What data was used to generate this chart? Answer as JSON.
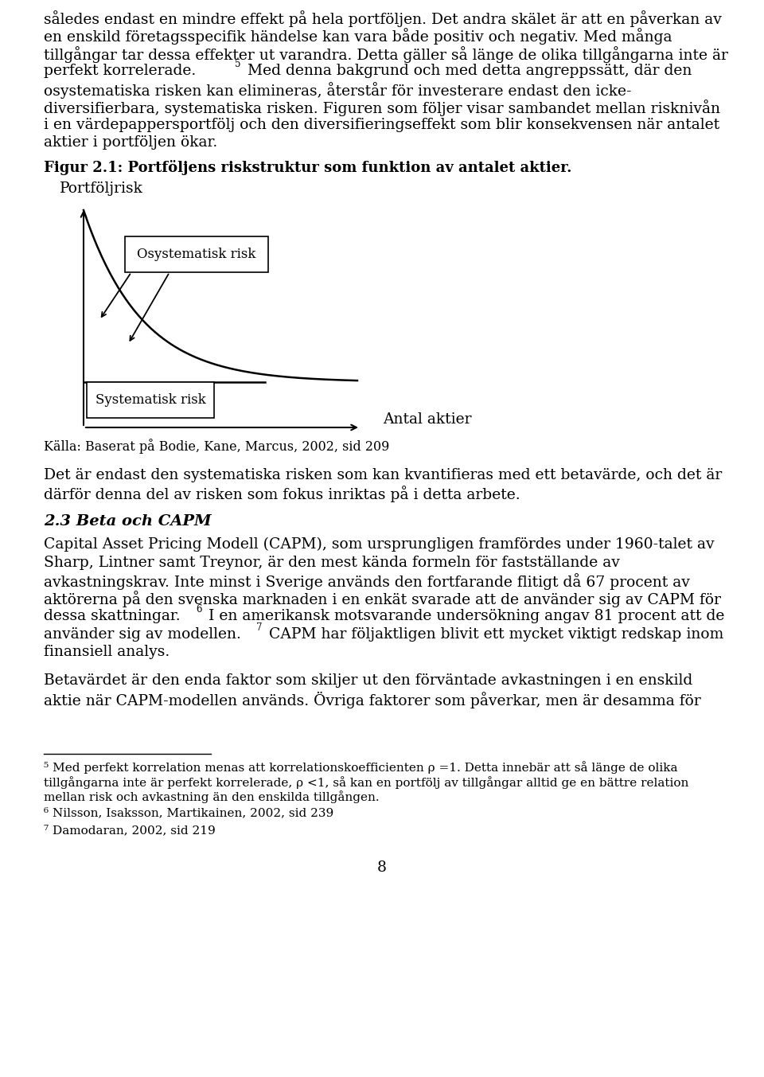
{
  "bg_color": "#ffffff",
  "body_fontsize": 13.5,
  "caption_fontsize": 13.0,
  "footnote_fontsize": 11.0,
  "figure_caption": "Figur 2.1: Portföljens riskstruktur som funktion av antalet aktier.",
  "y_axis_label": "Portföljrisk",
  "x_axis_label": "Antal aktier",
  "label_osystematisk": "Osystematisk risk",
  "label_systematisk": "Systematisk risk",
  "source_label": "Källa: Baserat på Bodie, Kane, Marcus, 2002, sid 209",
  "para1_line1": "således endast en mindre effekt på hela portföljen. Det andra skälet är att en påverkan av",
  "para1_line2": "en enskild företagsspecifik händelse kan vara både positiv och negativ. Med många",
  "para1_line3": "tillgångar tar dessa effekter ut varandra. Detta gäller så länge de olika tillgångarna inte är",
  "para1_line4": "perfekt korrelerade.",
  "para1b_line1": " Med denna bakgrund och med detta angreppssätt, där den",
  "para1b_line2": "osystematiska risken kan elimineras, återstår för investerare endast den icke-",
  "para1b_line3": "diversifierbara, systematiska risken. Figuren som följer visar sambandet mellan risknivån",
  "para1b_line4": "i en värdepappersportfölj och den diversifieringseffekt som blir konsekvensen när antalet",
  "para1b_line5": "aktier i portföljen ökar.",
  "para2_line1": "Det är endast den systematiska risken som kan kvantifieras med ett betavärde, och det är",
  "para2_line2": "därför denna del av risken som fokus inriktas på i detta arbete.",
  "heading23": "2.3 Beta och CAPM",
  "para3_line1": "Capital Asset Pricing Modell (CAPM), som ursprungligen framfördes under 1960-talet av",
  "para3_line2": "Sharp, Lintner samt Treynor, är den mest kända formeln för fastställande av",
  "para3_line3": "avkastningskrav. Inte minst i Sverige används den fortfarande flitigt då 67 procent av",
  "para3_line4": "aktörerna på den svenska marknaden i en enkät svarade att de använder sig av CAPM för",
  "para3_line5": "dessa skattningar.",
  "para3b_line1": " I en amerikansk motsvarande undersökning angav 81 procent att de",
  "para3b_line2": "använder sig av modellen.",
  "para3c_line1": " CAPM har följaktligen blivit ett mycket viktigt redskap inom",
  "para3c_line2": "finansiell analys.",
  "para4_line1": "Betavärdet är den enda faktor som skiljer ut den förväntade avkastningen i en enskild",
  "para4_line2": "aktie när CAPM-modellen används. Övriga faktorer som påverkar, men är desamma för",
  "fn5": "⁵ Med perfekt korrelation menas att korrelationskoefficienten ρ =1. Detta innebär att så länge de olika",
  "fn5b": "tillgångarna inte är perfekt korrelerade, ρ <1, så kan en portfölj av tillgångar alltid ge en bättre relation",
  "fn5c": "mellan risk och avkastning än den enskilda tillgången.",
  "fn6": "⁶ Nilsson, Isaksson, Martikainen, 2002, sid 239",
  "fn7": "⁷ Damodaran, 2002, sid 219",
  "page_number": "8"
}
